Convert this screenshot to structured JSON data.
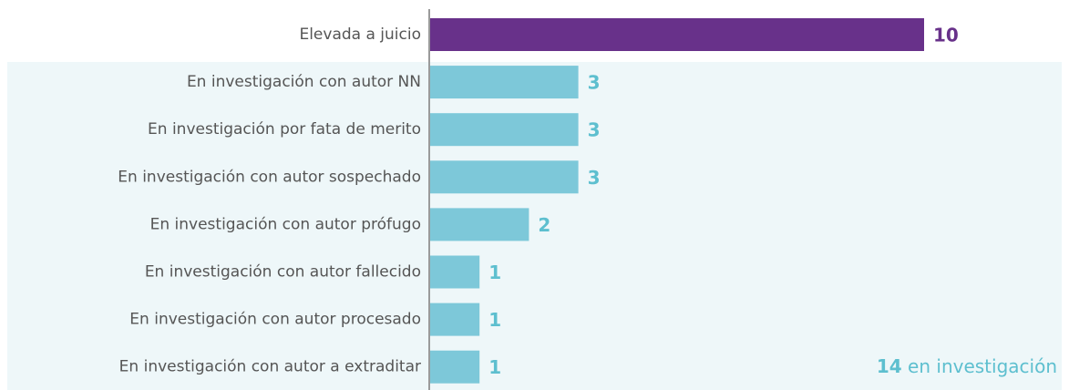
{
  "chart_data": {
    "type": "hbar",
    "categories": [
      "Elevada a juicio",
      "En investigación con autor NN",
      "En investigación por fata de merito",
      "En investigación con autor sospechado",
      "En investigación con autor prófugo",
      "En investigación con autor fallecido",
      "En investigación con autor procesado",
      "En investigación con autor a extraditar"
    ],
    "values": [
      10,
      3,
      3,
      3,
      2,
      1,
      1,
      1
    ],
    "colors": [
      "#68318a",
      "#7dc8d9",
      "#7dc8d9",
      "#7dc8d9",
      "#7dc8d9",
      "#7dc8d9",
      "#7dc8d9",
      "#7dc8d9"
    ],
    "label_colors": [
      "#68318a",
      "#5dbfcf",
      "#5dbfcf",
      "#5dbfcf",
      "#5dbfcf",
      "#5dbfcf",
      "#5dbfcf",
      "#5dbfcf"
    ],
    "xlim": [
      0,
      10
    ],
    "annotation_value": 14,
    "annotation_text": "en investigación"
  }
}
